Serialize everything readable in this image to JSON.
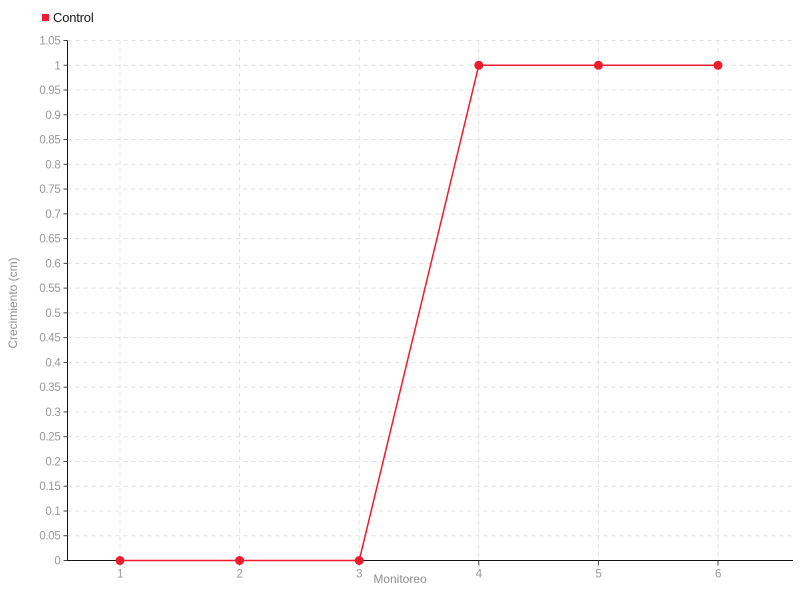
{
  "chart_data": {
    "type": "line",
    "title": "",
    "xlabel": "Monitoreo",
    "ylabel": "Crecimiento (cm)",
    "x": [
      1,
      2,
      3,
      4,
      5,
      6
    ],
    "x_tick_labels": [
      "1",
      "2",
      "3",
      "4",
      "5",
      "6"
    ],
    "series": [
      {
        "name": "Control",
        "color": "#ee1c2d",
        "values": [
          0,
          0,
          0,
          1,
          1,
          1
        ]
      }
    ],
    "ylim": [
      0,
      1.05
    ],
    "y_tick_values": [
      0,
      0.05,
      0.1,
      0.15,
      0.2,
      0.25,
      0.3,
      0.35,
      0.4,
      0.45,
      0.5,
      0.55,
      0.6,
      0.65,
      0.7,
      0.75,
      0.8,
      0.85,
      0.9,
      0.95,
      1,
      1.05
    ],
    "y_tick_labels": [
      "0",
      "0.05",
      "0.1",
      "0.15",
      "0.2",
      "0.25",
      "0.3",
      "0.35",
      "0.4",
      "0.45",
      "0.5",
      "0.55",
      "0.6",
      "0.65",
      "0.7",
      "0.75",
      "0.8",
      "0.85",
      "0.9",
      "0.95",
      "1",
      "1.05"
    ],
    "grid": "dashed",
    "legend_position": "top-left",
    "colors": {
      "accent": "#ee1c2d",
      "grid": "#e0e0e0",
      "axis": "#111111",
      "tick_label": "#999999",
      "background": "#ffffff"
    }
  },
  "legend": {
    "control_label": "Control"
  }
}
